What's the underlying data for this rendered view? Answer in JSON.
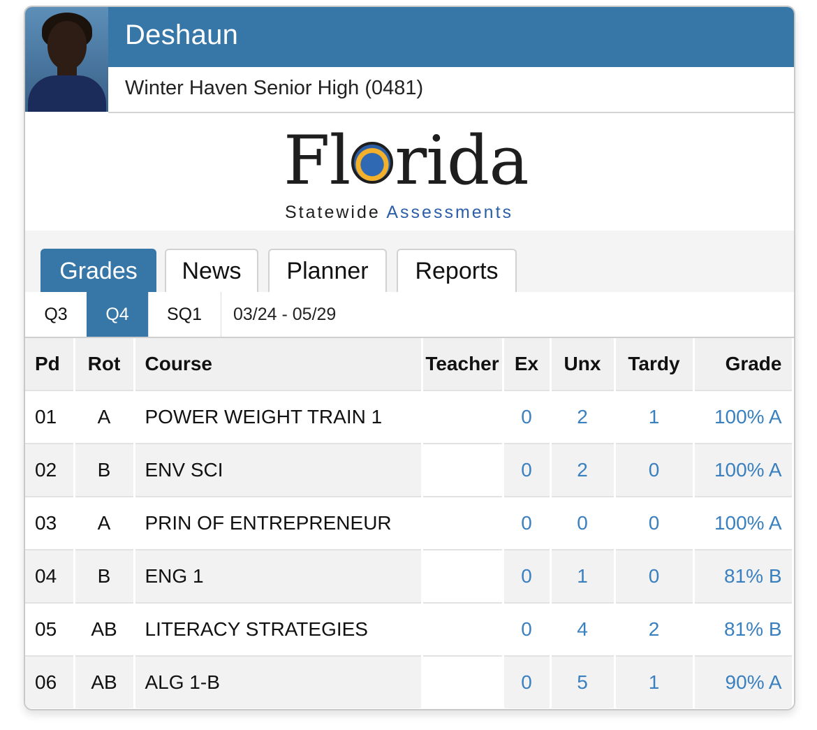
{
  "student": {
    "name": "Deshaun",
    "school": "Winter Haven Senior High (0481)"
  },
  "logo": {
    "word_start": "Fl",
    "word_end": "rida",
    "sub_primary": "Statewide",
    "sub_secondary": "Assessments"
  },
  "tabs": [
    {
      "label": "Grades",
      "active": true
    },
    {
      "label": "News",
      "active": false
    },
    {
      "label": "Planner",
      "active": false
    },
    {
      "label": "Reports",
      "active": false
    }
  ],
  "terms": [
    {
      "label": "Q3",
      "active": false
    },
    {
      "label": "Q4",
      "active": true
    },
    {
      "label": "SQ1",
      "active": false
    }
  ],
  "date_range": "03/24 - 05/29",
  "table": {
    "headers": [
      "Pd",
      "Rot",
      "Course",
      "Teacher",
      "Ex",
      "Unx",
      "Tardy",
      "Grade"
    ],
    "rows": [
      {
        "pd": "01",
        "rot": "A",
        "course": "POWER WEIGHT TRAIN 1",
        "teacher": "",
        "ex": "0",
        "unx": "2",
        "tardy": "1",
        "grade": "100% A"
      },
      {
        "pd": "02",
        "rot": "B",
        "course": "ENV SCI",
        "teacher": "",
        "ex": "0",
        "unx": "2",
        "tardy": "0",
        "grade": "100% A"
      },
      {
        "pd": "03",
        "rot": "A",
        "course": "PRIN OF ENTREPRENEUR",
        "teacher": "",
        "ex": "0",
        "unx": "0",
        "tardy": "0",
        "grade": "100% A"
      },
      {
        "pd": "04",
        "rot": "B",
        "course": "ENG 1",
        "teacher": "",
        "ex": "0",
        "unx": "1",
        "tardy": "0",
        "grade": "81% B"
      },
      {
        "pd": "05",
        "rot": "AB",
        "course": "LITERACY STRATEGIES",
        "teacher": "",
        "ex": "0",
        "unx": "4",
        "tardy": "2",
        "grade": "81% B"
      },
      {
        "pd": "06",
        "rot": "AB",
        "course": "ALG 1-B",
        "teacher": "",
        "ex": "0",
        "unx": "5",
        "tardy": "1",
        "grade": "90% A"
      }
    ]
  },
  "colors": {
    "header_blue": "#3677a8",
    "link_blue": "#3a80bf",
    "row_alt": "#f2f2f2"
  }
}
